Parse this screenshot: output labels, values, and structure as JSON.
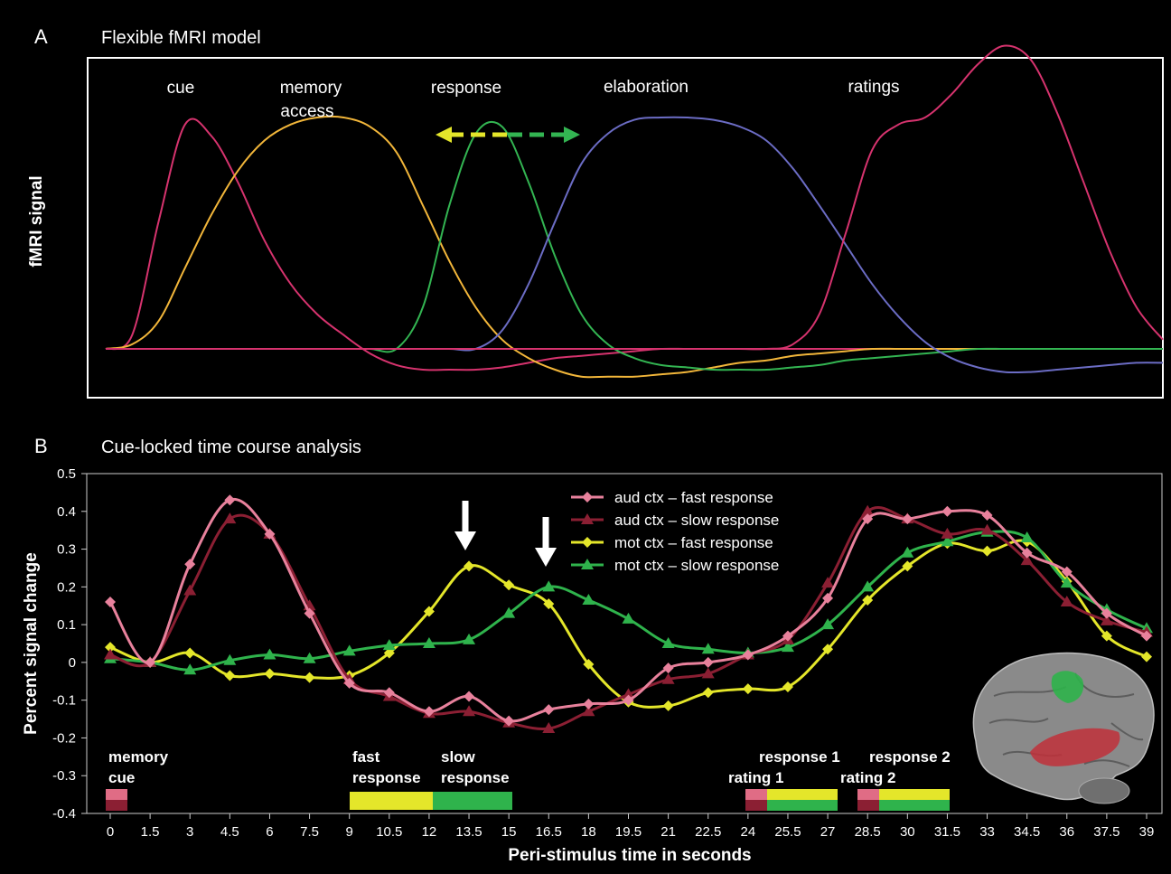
{
  "panel_a": {
    "letter": "A",
    "title": "Flexible fMRI model",
    "ylabel": "fMRI signal",
    "phases": [
      "cue",
      "memory",
      "access",
      "response",
      "elaboration",
      "ratings"
    ]
  },
  "panel_b": {
    "letter": "B",
    "title": "Cue-locked time course analysis",
    "ylabel": "Percent signal change",
    "xlabel": "Peri-stimulus time in seconds",
    "brain_colors": {
      "auditory": "#c0303a",
      "motor": "#2db34a"
    },
    "events": {
      "memory": "memory",
      "cue": "cue",
      "fast": "fast",
      "fast_response": "response",
      "slow": "slow",
      "slow_response": "response",
      "response1": "response 1",
      "rating1": "rating 1",
      "response2": "response 2",
      "rating2": "rating 2"
    }
  },
  "chart_data": [
    {
      "type": "line",
      "title": "Flexible fMRI model",
      "xlabel": "",
      "ylabel": "fMRI signal",
      "x": [
        0,
        1,
        2,
        3,
        4,
        5,
        6,
        7,
        8,
        9,
        10,
        11,
        12,
        13,
        14,
        15,
        16,
        17,
        18,
        19,
        20,
        21,
        22,
        23,
        24,
        25,
        26,
        27,
        28,
        29,
        30,
        31,
        32,
        33,
        34,
        35,
        36,
        37,
        38,
        39,
        40
      ],
      "series": [
        {
          "name": "cue",
          "color": "#d6336e",
          "values": [
            0,
            0.06,
            0.55,
            0.97,
            0.92,
            0.72,
            0.47,
            0.28,
            0.15,
            0.06,
            -0.02,
            -0.07,
            -0.09,
            -0.09,
            -0.09,
            -0.08,
            -0.06,
            -0.04,
            -0.03,
            -0.02,
            -0.01,
            0,
            0,
            0,
            0,
            0,
            0,
            0,
            0,
            0,
            0,
            0,
            0,
            0,
            0,
            0,
            0,
            0,
            0,
            0,
            0
          ]
        },
        {
          "name": "memory access",
          "color": "#f2b63a",
          "values": [
            0,
            0.02,
            0.12,
            0.35,
            0.58,
            0.77,
            0.9,
            0.97,
            1.0,
            1.0,
            0.96,
            0.85,
            0.62,
            0.38,
            0.18,
            0.04,
            -0.04,
            -0.09,
            -0.12,
            -0.12,
            -0.12,
            -0.11,
            -0.1,
            -0.08,
            -0.06,
            -0.05,
            -0.03,
            -0.02,
            -0.01,
            0,
            0,
            0,
            0,
            0,
            0,
            0,
            0,
            0,
            0,
            0,
            0
          ]
        },
        {
          "name": "response",
          "color": "#33b552",
          "values": [
            0,
            0,
            0,
            0,
            0,
            0,
            0,
            0,
            0,
            0,
            0,
            0,
            0.18,
            0.62,
            0.93,
            0.96,
            0.72,
            0.4,
            0.15,
            0.02,
            -0.04,
            -0.07,
            -0.08,
            -0.09,
            -0.09,
            -0.09,
            -0.08,
            -0.07,
            -0.05,
            -0.04,
            -0.03,
            -0.02,
            -0.01,
            0,
            0,
            0,
            0,
            0,
            0,
            0,
            0
          ]
        },
        {
          "name": "elaboration",
          "color": "#6b6cc4",
          "values": [
            0,
            0,
            0,
            0,
            0,
            0,
            0,
            0,
            0,
            0,
            0,
            0,
            0,
            0,
            0,
            0.08,
            0.28,
            0.55,
            0.8,
            0.93,
            0.99,
            1.0,
            1.0,
            0.99,
            0.96,
            0.9,
            0.78,
            0.62,
            0.45,
            0.28,
            0.14,
            0.03,
            -0.04,
            -0.08,
            -0.1,
            -0.1,
            -0.09,
            -0.08,
            -0.07,
            -0.06,
            -0.06
          ]
        },
        {
          "name": "ratings",
          "color": "#d6336e",
          "values": [
            0,
            0,
            0,
            0,
            0,
            0,
            0,
            0,
            0,
            0,
            0,
            0,
            0,
            0,
            0,
            0,
            0,
            0,
            0,
            0,
            0,
            0,
            0,
            0,
            0,
            0,
            0.02,
            0.15,
            0.5,
            0.86,
            0.97,
            1.0,
            1.1,
            1.23,
            1.31,
            1.25,
            1.02,
            0.72,
            0.42,
            0.18,
            0.04
          ]
        }
      ]
    },
    {
      "type": "line",
      "title": "Cue-locked time course analysis",
      "xlabel": "Peri-stimulus time in seconds",
      "ylabel": "Percent signal change",
      "ylim": [
        -0.4,
        0.5
      ],
      "yticks": [
        0.5,
        0.4,
        0.3,
        0.2,
        0.1,
        0,
        -0.1,
        -0.2,
        -0.3,
        -0.4
      ],
      "ytick_labels": [
        "0.5",
        "0.4",
        "0.3",
        "0.2",
        "0.1",
        "0",
        "-0.1",
        "-0.2",
        "-0.3",
        "-0.4"
      ],
      "x": [
        0,
        1.5,
        3,
        4.5,
        6,
        7.5,
        9,
        10.5,
        12,
        13.5,
        15,
        16.5,
        18,
        19.5,
        21,
        22.5,
        24,
        25.5,
        27,
        28.5,
        30,
        31.5,
        33,
        34.5,
        36,
        37.5,
        39
      ],
      "xtick_labels": [
        "0",
        "1.5",
        "3",
        "4.5",
        "6",
        "7.5",
        "9",
        "10.5",
        "12",
        "13.5",
        "15",
        "16.5",
        "18",
        "19.5",
        "21",
        "22.5",
        "24",
        "25.5",
        "27",
        "28.5",
        "30",
        "31.5",
        "33",
        "34.5",
        "36",
        "37.5",
        "39"
      ],
      "legend_position": "top-center",
      "series": [
        {
          "name": "aud ctx – fast response",
          "color": "#e8819c",
          "marker": "diamond",
          "values": [
            0.16,
            0.0,
            0.26,
            0.43,
            0.34,
            0.13,
            -0.055,
            -0.08,
            -0.13,
            -0.09,
            -0.155,
            -0.125,
            -0.11,
            -0.1,
            -0.015,
            0.0,
            0.02,
            0.07,
            0.17,
            0.38,
            0.38,
            0.4,
            0.39,
            0.29,
            0.24,
            0.13,
            0.07
          ]
        },
        {
          "name": "aud ctx – slow response",
          "color": "#8b1f33",
          "marker": "triangle",
          "values": [
            0.02,
            0.0,
            0.19,
            0.38,
            0.34,
            0.15,
            -0.045,
            -0.09,
            -0.135,
            -0.13,
            -0.16,
            -0.175,
            -0.13,
            -0.085,
            -0.045,
            -0.03,
            0.02,
            0.06,
            0.21,
            0.4,
            0.38,
            0.34,
            0.35,
            0.27,
            0.16,
            0.11,
            0.08
          ]
        },
        {
          "name": "mot ctx – fast response",
          "color": "#e4e62a",
          "marker": "diamond",
          "values": [
            0.04,
            0.0,
            0.025,
            -0.035,
            -0.03,
            -0.04,
            -0.035,
            0.025,
            0.135,
            0.255,
            0.205,
            0.155,
            -0.005,
            -0.105,
            -0.115,
            -0.08,
            -0.07,
            -0.065,
            0.035,
            0.165,
            0.255,
            0.315,
            0.295,
            0.32,
            0.215,
            0.07,
            0.015
          ]
        },
        {
          "name": "mot ctx – slow response",
          "color": "#2fb34c",
          "marker": "triangle",
          "values": [
            0.01,
            0.0,
            -0.02,
            0.005,
            0.02,
            0.01,
            0.03,
            0.045,
            0.05,
            0.06,
            0.13,
            0.2,
            0.165,
            0.115,
            0.05,
            0.035,
            0.025,
            0.04,
            0.1,
            0.2,
            0.29,
            0.32,
            0.345,
            0.33,
            0.21,
            0.14,
            0.09
          ]
        }
      ]
    }
  ]
}
